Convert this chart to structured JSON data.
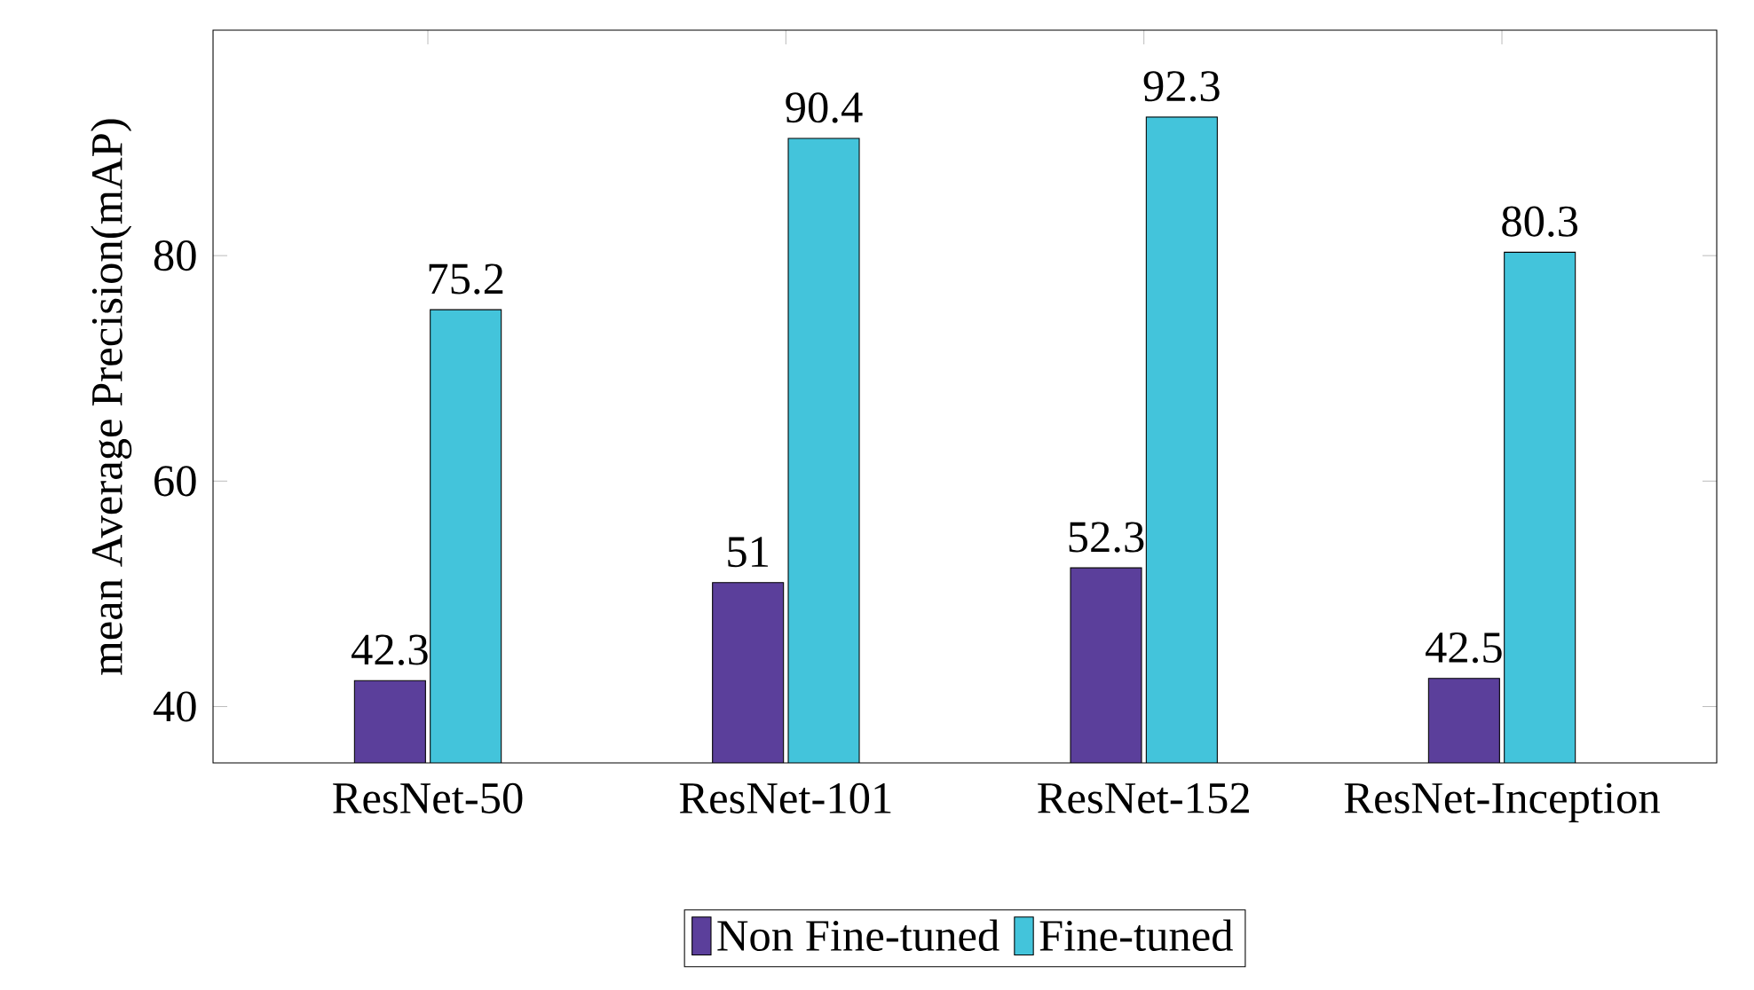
{
  "chart_data": {
    "type": "bar",
    "ylabel": "mean Average Precision(mAP)",
    "categories": [
      "ResNet-50",
      "ResNet-101",
      "ResNet-152",
      "ResNet-Inception"
    ],
    "series": [
      {
        "name": "Non Fine-tuned",
        "color": "#5b3f9b",
        "values": [
          42.3,
          51,
          52.3,
          42.5
        ]
      },
      {
        "name": "Fine-tuned",
        "color": "#43c4db",
        "values": [
          75.2,
          90.4,
          92.3,
          80.3
        ]
      }
    ],
    "ylim": [
      35,
      100
    ],
    "yticks": [
      40,
      60,
      80
    ],
    "data_labels": true,
    "legend": "bottom",
    "grid": false
  }
}
